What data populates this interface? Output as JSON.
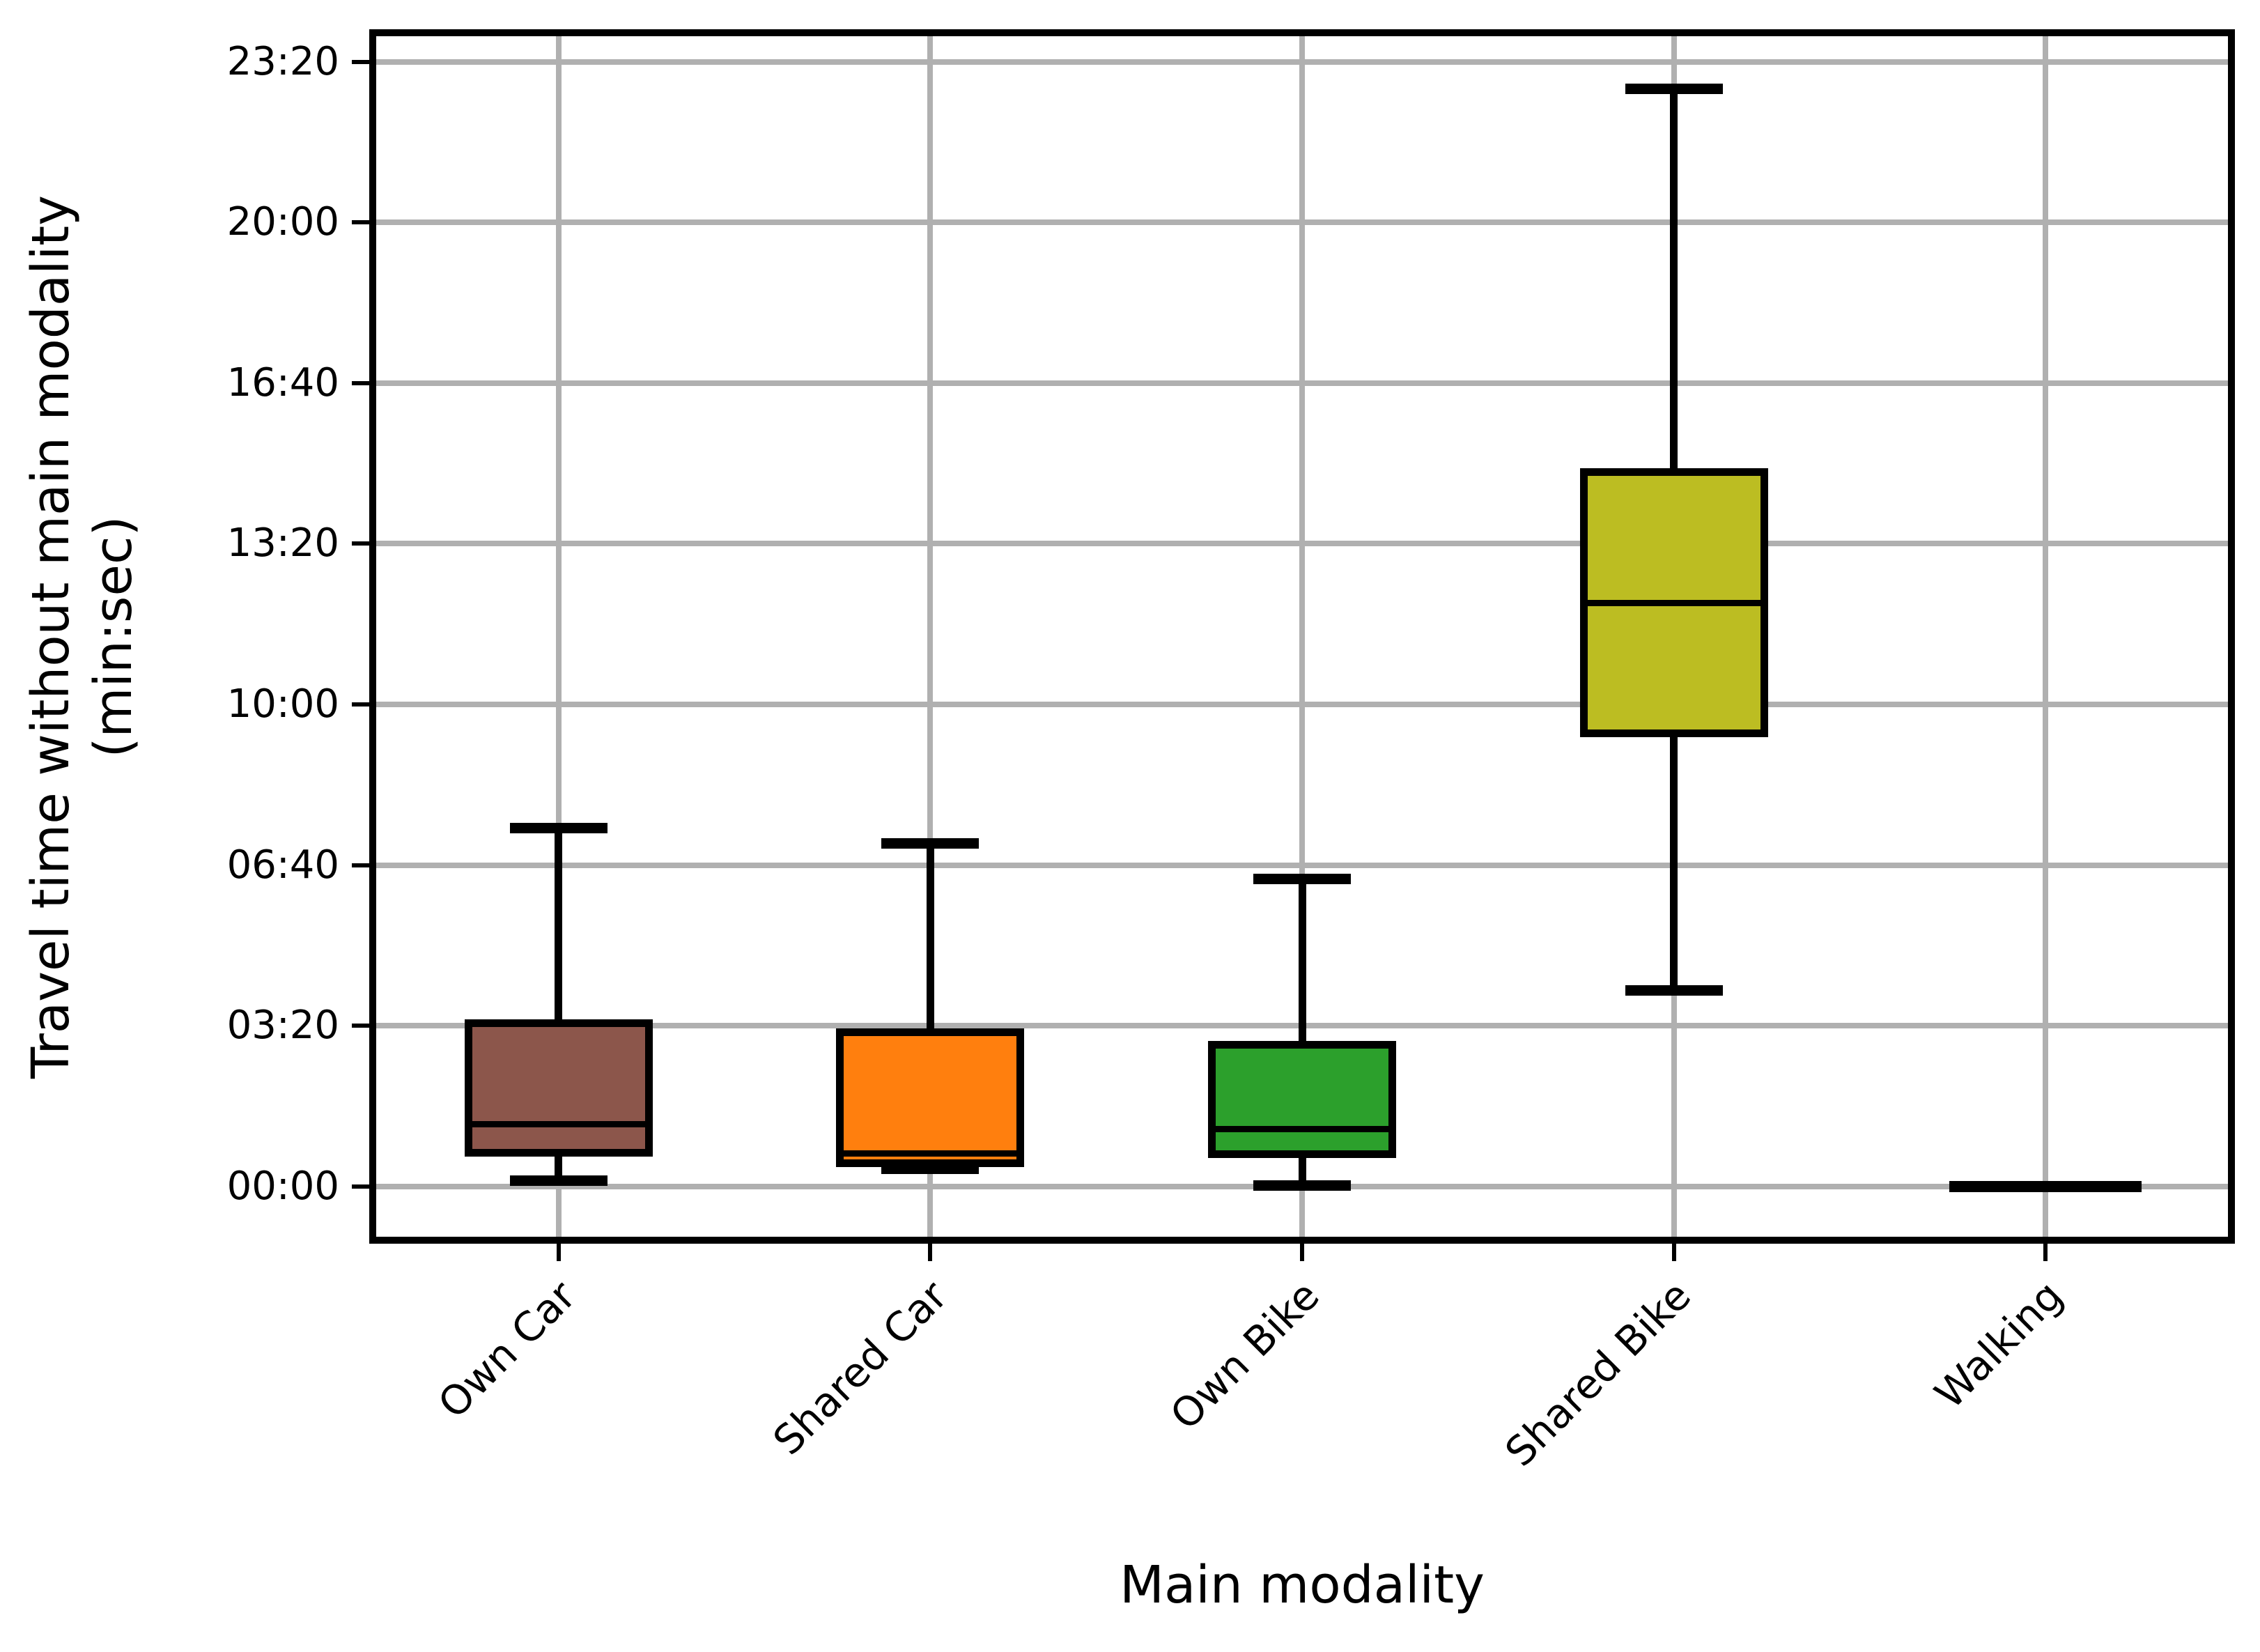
{
  "figure": {
    "background": "#ffffff",
    "grid_color": "#b0b0b0",
    "spine_color": "#000000",
    "grid": true
  },
  "chart_data": {
    "type": "box",
    "title": "",
    "xlabel": "Main modality",
    "ylabel": [
      "Travel time without main modality",
      "(min:sec)"
    ],
    "categories": [
      "Own Car",
      "Shared Car",
      "Own Bike",
      "Shared Bike",
      "Walking"
    ],
    "y_axis": {
      "unit": "min:sec",
      "tick_labels": [
        "00:00",
        "03:20",
        "06:40",
        "10:00",
        "13:20",
        "16:40",
        "20:00",
        "23:20"
      ],
      "tick_seconds": [
        0,
        200,
        400,
        600,
        800,
        1000,
        1200,
        1400
      ],
      "ylim_seconds": [
        -67,
        1436
      ]
    },
    "legend": null,
    "series": [
      {
        "category": "Own Car",
        "color": "#8c564b",
        "whisker_low": "00:07",
        "q1": "00:42",
        "median": "01:17",
        "q3": "03:23",
        "whisker_high": "07:26",
        "seconds": {
          "whisker_low": 7,
          "q1": 42,
          "median": 77,
          "q3": 203,
          "whisker_high": 446
        }
      },
      {
        "category": "Shared Car",
        "color": "#ff7f0e",
        "whisker_low": "00:22",
        "q1": "00:29",
        "median": "00:41",
        "q3": "03:12",
        "whisker_high": "07:07",
        "seconds": {
          "whisker_low": 22,
          "q1": 29,
          "median": 41,
          "q3": 192,
          "whisker_high": 427
        }
      },
      {
        "category": "Own Bike",
        "color": "#2ca02c",
        "whisker_low": "00:01",
        "q1": "00:40",
        "median": "01:11",
        "q3": "02:56",
        "whisker_high": "06:23",
        "seconds": {
          "whisker_low": 1,
          "q1": 40,
          "median": 71,
          "q3": 176,
          "whisker_high": 383
        }
      },
      {
        "category": "Shared Bike",
        "color": "#bcbd22",
        "whisker_low": "04:04",
        "q1": "09:24",
        "median": "12:06",
        "q3": "14:49",
        "whisker_high": "22:46",
        "seconds": {
          "whisker_low": 244,
          "q1": 564,
          "median": 726,
          "q3": 889,
          "whisker_high": 1366
        }
      },
      {
        "category": "Walking",
        "color": "#000000",
        "whisker_low": "00:00",
        "q1": "00:00",
        "median": "00:00",
        "q3": "00:00",
        "whisker_high": "00:00",
        "seconds": {
          "whisker_low": 0,
          "q1": 0,
          "median": 0,
          "q3": 0,
          "whisker_high": 0
        }
      }
    ]
  }
}
